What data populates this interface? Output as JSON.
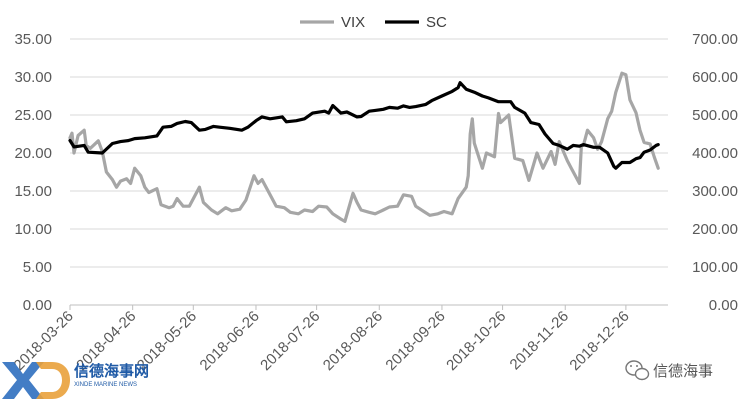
{
  "chart_data": {
    "type": "line",
    "title": "",
    "legend": {
      "placement": "top-center",
      "entries": [
        "VIX",
        "SC"
      ]
    },
    "x_ticks": [
      "2018-03-26",
      "2018-04-26",
      "2018-05-26",
      "2018-06-26",
      "2018-07-26",
      "2018-08-26",
      "2018-09-26",
      "2018-10-26",
      "2018-11-26",
      "2018-12-26"
    ],
    "x_range": [
      "2018-03-26",
      "2018-12-31"
    ],
    "y_left": {
      "min": 0,
      "max": 35,
      "step": 5,
      "ticks": [
        "0.00",
        "5.00",
        "10.00",
        "15.00",
        "20.00",
        "25.00",
        "30.00",
        "35.00"
      ]
    },
    "y_right": {
      "min": 0,
      "max": 700,
      "step": 100,
      "ticks": [
        "0.00",
        "100.00",
        "200.00",
        "300.00",
        "400.00",
        "500.00",
        "600.00",
        "700.00"
      ]
    },
    "grid": "horizontal",
    "series": [
      {
        "name": "VIX",
        "axis": "left",
        "color": "#a6a6a6",
        "points": [
          [
            "2018-03-26",
            22.0
          ],
          [
            "2018-03-27",
            22.6
          ],
          [
            "2018-03-28",
            20.0
          ],
          [
            "2018-03-30",
            22.3
          ],
          [
            "2018-04-02",
            23.0
          ],
          [
            "2018-04-03",
            21.0
          ],
          [
            "2018-04-05",
            20.6
          ],
          [
            "2018-04-09",
            21.6
          ],
          [
            "2018-04-11",
            20.2
          ],
          [
            "2018-04-13",
            17.5
          ],
          [
            "2018-04-16",
            16.5
          ],
          [
            "2018-04-18",
            15.5
          ],
          [
            "2018-04-20",
            16.3
          ],
          [
            "2018-04-23",
            16.6
          ],
          [
            "2018-04-25",
            16.0
          ],
          [
            "2018-04-27",
            18.0
          ],
          [
            "2018-04-30",
            17.0
          ],
          [
            "2018-05-02",
            15.5
          ],
          [
            "2018-05-04",
            14.8
          ],
          [
            "2018-05-08",
            15.3
          ],
          [
            "2018-05-10",
            13.2
          ],
          [
            "2018-05-14",
            12.8
          ],
          [
            "2018-05-16",
            13.0
          ],
          [
            "2018-05-18",
            14.0
          ],
          [
            "2018-05-21",
            13.0
          ],
          [
            "2018-05-24",
            13.0
          ],
          [
            "2018-05-29",
            15.5
          ],
          [
            "2018-05-31",
            13.5
          ],
          [
            "2018-06-04",
            12.5
          ],
          [
            "2018-06-07",
            12.0
          ],
          [
            "2018-06-11",
            12.8
          ],
          [
            "2018-06-14",
            12.4
          ],
          [
            "2018-06-18",
            12.6
          ],
          [
            "2018-06-21",
            13.8
          ],
          [
            "2018-06-25",
            17.0
          ],
          [
            "2018-06-27",
            16.0
          ],
          [
            "2018-06-29",
            16.5
          ],
          [
            "2018-07-03",
            14.5
          ],
          [
            "2018-07-06",
            13.0
          ],
          [
            "2018-07-10",
            12.8
          ],
          [
            "2018-07-13",
            12.2
          ],
          [
            "2018-07-17",
            12.0
          ],
          [
            "2018-07-20",
            12.5
          ],
          [
            "2018-07-24",
            12.3
          ],
          [
            "2018-07-27",
            13.0
          ],
          [
            "2018-07-31",
            12.9
          ],
          [
            "2018-08-03",
            12.0
          ],
          [
            "2018-08-07",
            11.3
          ],
          [
            "2018-08-09",
            11.0
          ],
          [
            "2018-08-13",
            14.7
          ],
          [
            "2018-08-15",
            13.5
          ],
          [
            "2018-08-17",
            12.5
          ],
          [
            "2018-08-21",
            12.2
          ],
          [
            "2018-08-24",
            12.0
          ],
          [
            "2018-08-28",
            12.5
          ],
          [
            "2018-08-31",
            12.9
          ],
          [
            "2018-09-04",
            13.0
          ],
          [
            "2018-09-07",
            14.5
          ],
          [
            "2018-09-11",
            14.3
          ],
          [
            "2018-09-13",
            13.0
          ],
          [
            "2018-09-17",
            12.3
          ],
          [
            "2018-09-20",
            11.8
          ],
          [
            "2018-09-24",
            12.0
          ],
          [
            "2018-09-27",
            12.3
          ],
          [
            "2018-10-01",
            12.0
          ],
          [
            "2018-10-04",
            14.0
          ],
          [
            "2018-10-08",
            15.5
          ],
          [
            "2018-10-09",
            17.0
          ],
          [
            "2018-10-10",
            22.5
          ],
          [
            "2018-10-11",
            24.5
          ],
          [
            "2018-10-12",
            21.3
          ],
          [
            "2018-10-16",
            18.0
          ],
          [
            "2018-10-18",
            20.0
          ],
          [
            "2018-10-22",
            19.5
          ],
          [
            "2018-10-24",
            25.2
          ],
          [
            "2018-10-25",
            24.0
          ],
          [
            "2018-10-29",
            25.0
          ],
          [
            "2018-11-01",
            19.3
          ],
          [
            "2018-11-05",
            19.0
          ],
          [
            "2018-11-08",
            16.4
          ],
          [
            "2018-11-12",
            20.0
          ],
          [
            "2018-11-15",
            18.0
          ],
          [
            "2018-11-19",
            20.2
          ],
          [
            "2018-11-21",
            18.5
          ],
          [
            "2018-11-23",
            21.5
          ],
          [
            "2018-11-27",
            19.0
          ],
          [
            "2018-11-29",
            18.0
          ],
          [
            "2018-12-03",
            16.0
          ],
          [
            "2018-12-04",
            21.0
          ],
          [
            "2018-12-05",
            21.0
          ],
          [
            "2018-12-07",
            23.0
          ],
          [
            "2018-12-10",
            22.0
          ],
          [
            "2018-12-12",
            20.5
          ],
          [
            "2018-12-14",
            21.5
          ],
          [
            "2018-12-17",
            24.5
          ],
          [
            "2018-12-19",
            25.5
          ],
          [
            "2018-12-21",
            28.0
          ],
          [
            "2018-12-24",
            30.5
          ],
          [
            "2018-12-26",
            30.3
          ],
          [
            "2018-12-28",
            27.0
          ],
          [
            "2018-12-31",
            25.3
          ],
          [
            "2019-01-02",
            23.0
          ],
          [
            "2019-01-04",
            21.4
          ],
          [
            "2019-01-07",
            21.2
          ],
          [
            "2019-01-09",
            19.5
          ],
          [
            "2019-01-11",
            18.0
          ]
        ]
      },
      {
        "name": "SC",
        "axis": "right",
        "color": "#000000",
        "points": [
          [
            "2018-03-26",
            433
          ],
          [
            "2018-03-28",
            416
          ],
          [
            "2018-04-02",
            420
          ],
          [
            "2018-04-04",
            402
          ],
          [
            "2018-04-11",
            400
          ],
          [
            "2018-04-16",
            425
          ],
          [
            "2018-04-20",
            430
          ],
          [
            "2018-04-24",
            433
          ],
          [
            "2018-04-27",
            438
          ],
          [
            "2018-05-02",
            440
          ],
          [
            "2018-05-08",
            445
          ],
          [
            "2018-05-11",
            468
          ],
          [
            "2018-05-15",
            470
          ],
          [
            "2018-05-18",
            478
          ],
          [
            "2018-05-22",
            483
          ],
          [
            "2018-05-25",
            480
          ],
          [
            "2018-05-29",
            460
          ],
          [
            "2018-06-01",
            462
          ],
          [
            "2018-06-05",
            470
          ],
          [
            "2018-06-08",
            468
          ],
          [
            "2018-06-13",
            465
          ],
          [
            "2018-06-19",
            460
          ],
          [
            "2018-06-22",
            468
          ],
          [
            "2018-06-26",
            485
          ],
          [
            "2018-06-29",
            495
          ],
          [
            "2018-07-03",
            490
          ],
          [
            "2018-07-09",
            495
          ],
          [
            "2018-07-11",
            482
          ],
          [
            "2018-07-16",
            485
          ],
          [
            "2018-07-20",
            490
          ],
          [
            "2018-07-24",
            505
          ],
          [
            "2018-07-30",
            510
          ],
          [
            "2018-08-01",
            505
          ],
          [
            "2018-08-03",
            525
          ],
          [
            "2018-08-07",
            505
          ],
          [
            "2018-08-10",
            508
          ],
          [
            "2018-08-15",
            495
          ],
          [
            "2018-08-17",
            496
          ],
          [
            "2018-08-21",
            510
          ],
          [
            "2018-08-24",
            512
          ],
          [
            "2018-08-28",
            515
          ],
          [
            "2018-08-31",
            520
          ],
          [
            "2018-09-04",
            518
          ],
          [
            "2018-09-07",
            524
          ],
          [
            "2018-09-10",
            520
          ],
          [
            "2018-09-13",
            522
          ],
          [
            "2018-09-18",
            528
          ],
          [
            "2018-09-21",
            538
          ],
          [
            "2018-09-26",
            550
          ],
          [
            "2018-10-01",
            562
          ],
          [
            "2018-10-04",
            572
          ],
          [
            "2018-10-05",
            585
          ],
          [
            "2018-10-08",
            568
          ],
          [
            "2018-10-12",
            560
          ],
          [
            "2018-10-16",
            550
          ],
          [
            "2018-10-19",
            545
          ],
          [
            "2018-10-24",
            535
          ],
          [
            "2018-10-30",
            535
          ],
          [
            "2018-11-01",
            520
          ],
          [
            "2018-11-06",
            505
          ],
          [
            "2018-11-09",
            480
          ],
          [
            "2018-11-13",
            475
          ],
          [
            "2018-11-16",
            450
          ],
          [
            "2018-11-20",
            425
          ],
          [
            "2018-11-23",
            420
          ],
          [
            "2018-11-27",
            410
          ],
          [
            "2018-11-30",
            420
          ],
          [
            "2018-12-03",
            418
          ],
          [
            "2018-12-05",
            422
          ],
          [
            "2018-12-10",
            415
          ],
          [
            "2018-12-13",
            415
          ],
          [
            "2018-12-17",
            400
          ],
          [
            "2018-12-20",
            365
          ],
          [
            "2018-12-21",
            360
          ],
          [
            "2018-12-24",
            375
          ],
          [
            "2018-12-28",
            375
          ],
          [
            "2018-12-31",
            385
          ],
          [
            "2019-01-02",
            388
          ],
          [
            "2019-01-04",
            402
          ],
          [
            "2019-01-07",
            408
          ],
          [
            "2019-01-10",
            420
          ],
          [
            "2019-01-11",
            422
          ]
        ]
      }
    ]
  },
  "watermark": {
    "logo_name": "xinde-logo",
    "logo_cn": "信德海事网",
    "logo_en": "XINDE MARINE NEWS",
    "text": "信德海事",
    "icon": "wechat-icon"
  }
}
